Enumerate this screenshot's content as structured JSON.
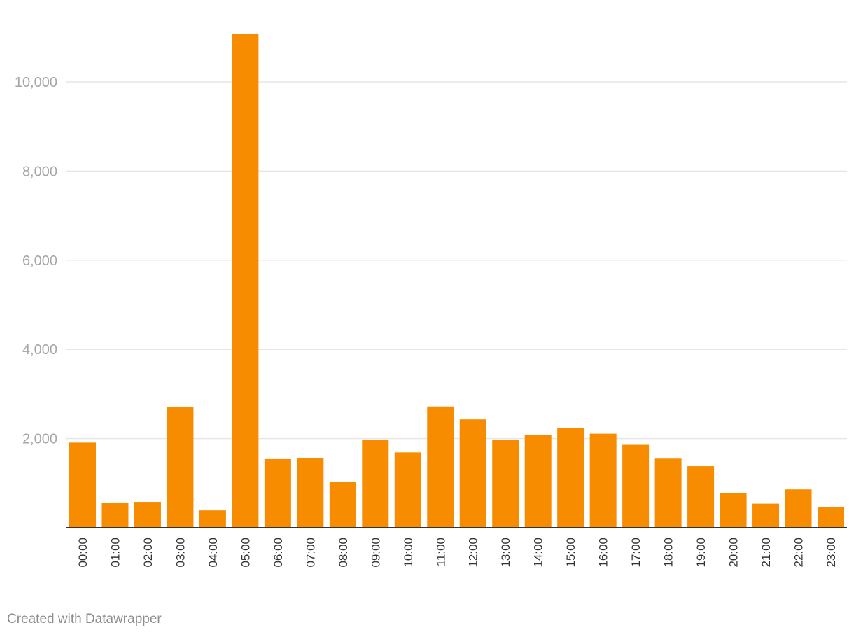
{
  "chart_data": {
    "type": "bar",
    "title": "",
    "xlabel": "",
    "ylabel": "",
    "categories": [
      "00:00",
      "01:00",
      "02:00",
      "03:00",
      "04:00",
      "05:00",
      "06:00",
      "07:00",
      "08:00",
      "09:00",
      "10:00",
      "11:00",
      "12:00",
      "13:00",
      "14:00",
      "15:00",
      "16:00",
      "17:00",
      "18:00",
      "19:00",
      "20:00",
      "21:00",
      "22:00",
      "23:00"
    ],
    "values": [
      1910,
      560,
      580,
      2700,
      390,
      11080,
      1540,
      1570,
      1030,
      1970,
      1690,
      2720,
      2430,
      1970,
      2080,
      2230,
      2110,
      1860,
      1550,
      1380,
      780,
      540,
      860,
      470
    ],
    "ylim": [
      0,
      11200
    ],
    "yticks": [
      2000,
      4000,
      6000,
      8000,
      10000
    ],
    "ytick_labels": [
      "2,000",
      "4,000",
      "6,000",
      "8,000",
      "10,000"
    ],
    "grid": true,
    "bar_color": "#f78c00"
  },
  "footer": {
    "credit": "Created with Datawrapper"
  }
}
